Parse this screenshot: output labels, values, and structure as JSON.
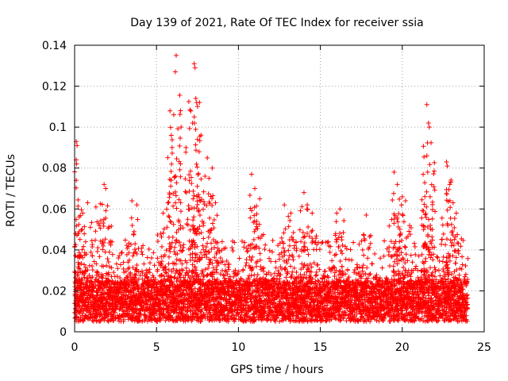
{
  "chart_data": {
    "type": "scatter",
    "title": "Day 139 of 2021, Rate Of TEC Index for receiver ssia",
    "xlabel": "GPS time / hours",
    "ylabel": "ROTI / TECUs",
    "xlim": [
      0,
      25
    ],
    "ylim": [
      0,
      0.14
    ],
    "xticks": [
      0,
      5,
      10,
      15,
      20,
      25
    ],
    "yticks": [
      0,
      0.02,
      0.04,
      0.06,
      0.08,
      0.1,
      0.12,
      0.14
    ],
    "xtick_labels": [
      "0",
      "5",
      "10",
      "15",
      "20",
      "25"
    ],
    "ytick_labels": [
      "0",
      "0.02",
      "0.04",
      "0.06",
      "0.08",
      "0.1",
      "0.12",
      "0.14"
    ],
    "grid": true,
    "marker": "+",
    "color": "#ff0000",
    "x_extent_hours": [
      0,
      24
    ],
    "baseline_band": [
      0.005,
      0.025
    ],
    "series": [
      {
        "name": "ROTI",
        "points": [
          [
            0.1,
            0.093
          ],
          [
            0.15,
            0.091
          ],
          [
            0.1,
            0.084
          ],
          [
            0.12,
            0.082
          ],
          [
            0.1,
            0.074
          ],
          [
            0.5,
            0.058
          ],
          [
            0.8,
            0.063
          ],
          [
            1.3,
            0.061
          ],
          [
            1.8,
            0.072
          ],
          [
            1.9,
            0.07
          ],
          [
            3.5,
            0.064
          ],
          [
            3.8,
            0.062
          ],
          [
            5.4,
            0.058
          ],
          [
            5.9,
            0.096
          ],
          [
            5.95,
            0.09
          ],
          [
            6.05,
            0.106
          ],
          [
            6.2,
            0.135
          ],
          [
            6.15,
            0.127
          ],
          [
            6.5,
            0.1
          ],
          [
            6.8,
            0.09
          ],
          [
            7.2,
            0.102
          ],
          [
            7.3,
            0.131
          ],
          [
            7.35,
            0.129
          ],
          [
            7.4,
            0.114
          ],
          [
            7.45,
            0.112
          ],
          [
            7.3,
            0.105
          ],
          [
            7.5,
            0.094
          ],
          [
            7.6,
            0.088
          ],
          [
            8.1,
            0.085
          ],
          [
            8.2,
            0.075
          ],
          [
            8.4,
            0.08
          ],
          [
            8.6,
            0.063
          ],
          [
            10.8,
            0.077
          ],
          [
            11.0,
            0.07
          ],
          [
            11.3,
            0.065
          ],
          [
            12.8,
            0.062
          ],
          [
            13.2,
            0.058
          ],
          [
            14.0,
            0.068
          ],
          [
            14.2,
            0.062
          ],
          [
            14.5,
            0.058
          ],
          [
            16.2,
            0.06
          ],
          [
            16.0,
            0.058
          ],
          [
            17.8,
            0.057
          ],
          [
            19.5,
            0.078
          ],
          [
            19.7,
            0.072
          ],
          [
            20.0,
            0.066
          ],
          [
            20.2,
            0.064
          ],
          [
            21.5,
            0.111
          ],
          [
            21.6,
            0.102
          ],
          [
            21.65,
            0.1
          ],
          [
            21.5,
            0.086
          ],
          [
            21.55,
            0.078
          ],
          [
            21.7,
            0.066
          ],
          [
            22.7,
            0.083
          ],
          [
            22.75,
            0.081
          ],
          [
            22.9,
            0.072
          ],
          [
            23.1,
            0.063
          ],
          [
            23.3,
            0.058
          ]
        ]
      }
    ]
  }
}
